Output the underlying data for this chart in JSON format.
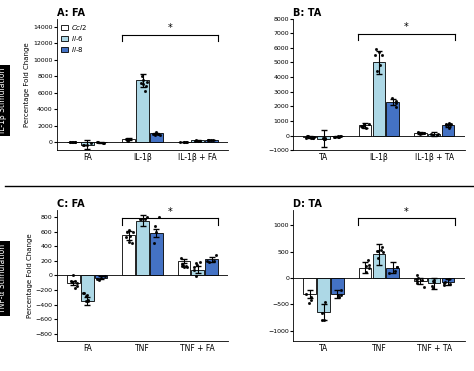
{
  "panel_A": {
    "title": "A: FA",
    "groups": [
      "FA",
      "IL-1β",
      "IL-1β + FA"
    ],
    "Ccl2": [
      0,
      380,
      -20
    ],
    "Il6": [
      -300,
      7500,
      200
    ],
    "Il8": [
      -50,
      1050,
      250
    ],
    "Ccl2_err": [
      30,
      80,
      30
    ],
    "Il6_err": [
      500,
      800,
      80
    ],
    "Il8_err": [
      30,
      100,
      50
    ],
    "ylim": [
      -1000,
      15000
    ]
  },
  "panel_B": {
    "title": "B: TA",
    "groups": [
      "TA",
      "IL-1β",
      "IL-1β + TA"
    ],
    "Ccl2": [
      -100,
      700,
      200
    ],
    "Il6": [
      -200,
      5000,
      100
    ],
    "Il8": [
      -50,
      2300,
      700
    ],
    "Ccl2_err": [
      50,
      150,
      60
    ],
    "Il6_err": [
      600,
      800,
      150
    ],
    "Il8_err": [
      30,
      200,
      100
    ],
    "ylim": [
      -1000,
      8000
    ]
  },
  "panel_C": {
    "title": "C: FA",
    "groups": [
      "FA",
      "TNF",
      "TNF + FA"
    ],
    "Ccl2": [
      -100,
      550,
      200
    ],
    "Il6": [
      -350,
      750,
      80
    ],
    "Il8": [
      -30,
      580,
      220
    ],
    "Ccl2_err": [
      30,
      60,
      30
    ],
    "Il6_err": [
      60,
      80,
      50
    ],
    "Il8_err": [
      20,
      60,
      30
    ],
    "ylim": [
      -900,
      900
    ]
  },
  "panel_D": {
    "title": "D: TA",
    "groups": [
      "TA",
      "TNF",
      "TNF + TA"
    ],
    "Ccl2": [
      -300,
      200,
      -60
    ],
    "Il6": [
      -650,
      450,
      -100
    ],
    "Il8": [
      -300,
      200,
      -80
    ],
    "Ccl2_err": [
      80,
      100,
      60
    ],
    "Il6_err": [
      150,
      200,
      100
    ],
    "Il8_err": [
      80,
      100,
      60
    ],
    "ylim": [
      -1200,
      1300
    ]
  },
  "colors": {
    "Ccl2": "#ffffff",
    "Il6": "#add8e6",
    "Il8": "#4472c4",
    "edge": "#000000"
  },
  "ylabel": "Percentage Fold Change",
  "row_label_top": "IL-1β Stimulation",
  "row_label_bottom": "TNF-α Stimulation",
  "bar_width": 0.25
}
